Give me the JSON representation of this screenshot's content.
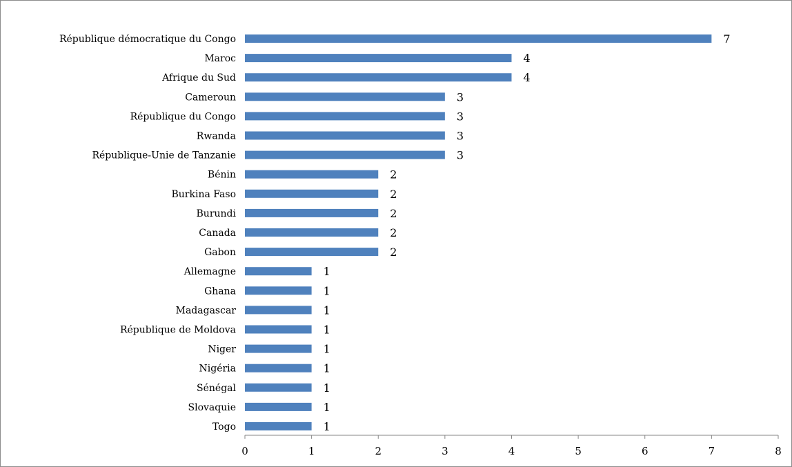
{
  "chart_data": {
    "type": "bar",
    "orientation": "horizontal",
    "title": "",
    "xlabel": "",
    "ylabel": "",
    "categories": [
      "République démocratique du Congo",
      "Maroc",
      "Afrique du Sud",
      "Cameroun",
      "République du Congo",
      "Rwanda",
      "République-Unie de Tanzanie",
      "Bénin",
      "Burkina Faso",
      "Burundi",
      "Canada",
      "Gabon",
      "Allemagne",
      "Ghana",
      "Madagascar",
      "République de Moldova",
      "Niger",
      "Nigéria",
      "Sénégal",
      "Slovaquie",
      "Togo"
    ],
    "values": [
      7,
      4,
      4,
      3,
      3,
      3,
      3,
      2,
      2,
      2,
      2,
      2,
      1,
      1,
      1,
      1,
      1,
      1,
      1,
      1,
      1
    ],
    "xlim": [
      0,
      8
    ],
    "xticks": [
      "0",
      "1",
      "2",
      "3",
      "4",
      "5",
      "6",
      "7",
      "8"
    ],
    "grid": false,
    "legend": "none",
    "data_labels": true,
    "colors": {
      "bar": "#4f81bd",
      "axis": "#868686"
    }
  }
}
